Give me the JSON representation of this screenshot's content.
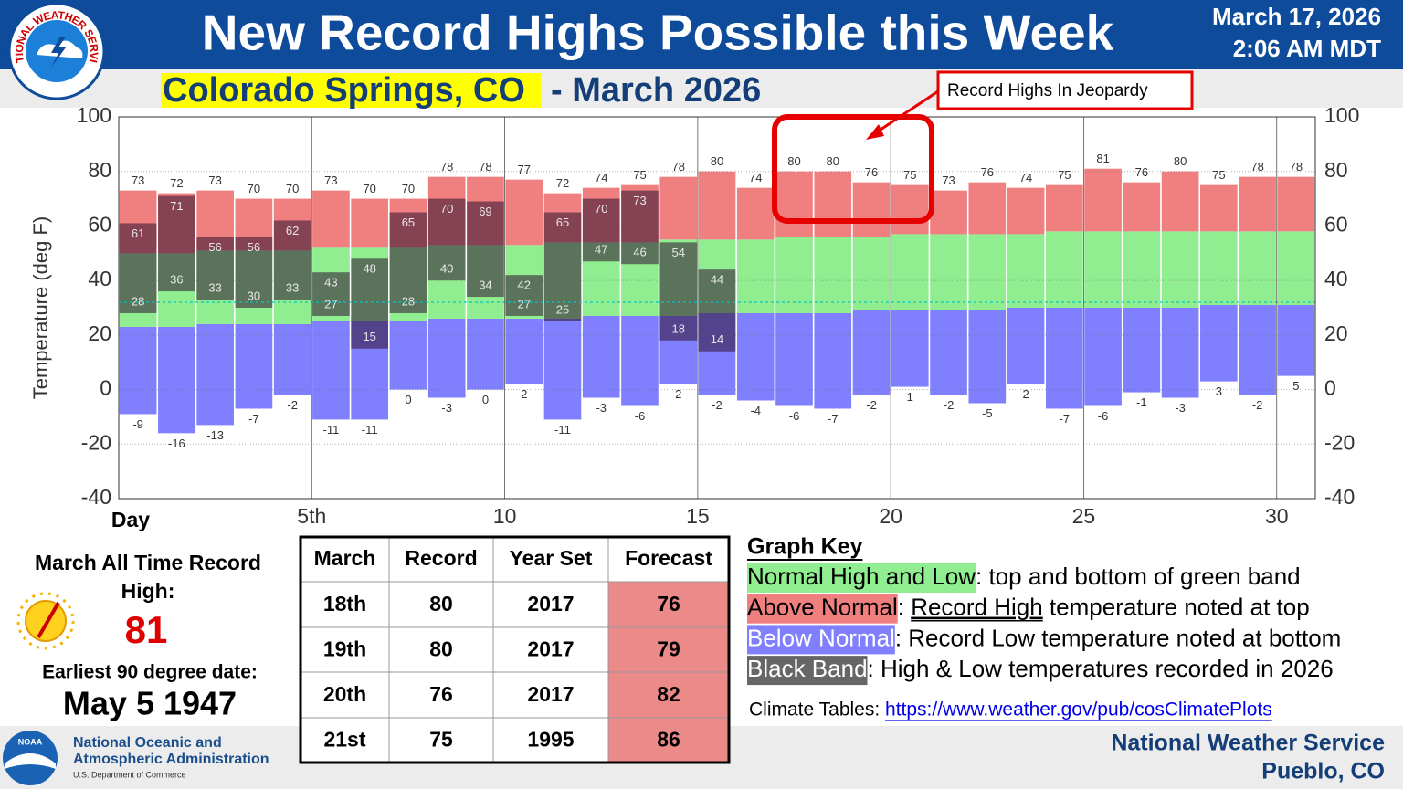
{
  "header": {
    "title": "New Record Highs Possible this Week",
    "date": "March 17, 2026",
    "time": "2:06 AM MDT",
    "logo_text": "NATIONAL WEATHER SERVICE",
    "location": "Colorado Springs, CO",
    "period": "- March 2026"
  },
  "chart_data": {
    "type": "range-bar",
    "annotation": "Record Highs In Jeopardy",
    "y_label": "Temperature (deg F)",
    "x_label": "Day",
    "x": [
      1,
      2,
      3,
      4,
      5,
      6,
      7,
      8,
      9,
      10,
      11,
      12,
      13,
      14,
      15,
      16,
      17,
      18,
      19,
      20,
      21,
      22,
      23,
      24,
      25,
      26,
      27,
      28,
      29,
      30,
      31
    ],
    "record_high": [
      73,
      72,
      73,
      70,
      70,
      73,
      70,
      70,
      78,
      78,
      77,
      72,
      74,
      75,
      78,
      80,
      74,
      80,
      80,
      76,
      75,
      73,
      76,
      74,
      75,
      81,
      76,
      80,
      75,
      78,
      78
    ],
    "record_low": [
      -9,
      -16,
      -13,
      -7,
      -2,
      -11,
      -11,
      0,
      -3,
      0,
      2,
      -11,
      -3,
      -6,
      2,
      -2,
      -4,
      -6,
      -7,
      -2,
      1,
      -2,
      -5,
      2,
      -7,
      -6,
      -1,
      -3,
      3,
      -2,
      5
    ],
    "normal_high": [
      50,
      50,
      51,
      51,
      51,
      52,
      52,
      52,
      53,
      53,
      53,
      54,
      54,
      54,
      55,
      55,
      55,
      56,
      56,
      56,
      57,
      57,
      57,
      57,
      58,
      58,
      58,
      58,
      58,
      58,
      58
    ],
    "normal_low": [
      23,
      23,
      24,
      24,
      24,
      25,
      25,
      25,
      26,
      26,
      26,
      26,
      27,
      27,
      27,
      28,
      28,
      28,
      28,
      29,
      29,
      29,
      29,
      30,
      30,
      30,
      30,
      30,
      31,
      31,
      31
    ],
    "high_2026": [
      61,
      71,
      56,
      56,
      62,
      43,
      48,
      65,
      70,
      69,
      42,
      65,
      70,
      73,
      54,
      44,
      null,
      null,
      null,
      null,
      null,
      null,
      null,
      null,
      null,
      null,
      null,
      null,
      null,
      null,
      null
    ],
    "low_2026": [
      28,
      36,
      33,
      30,
      33,
      27,
      15,
      28,
      40,
      34,
      27,
      25,
      47,
      46,
      18,
      14,
      null,
      null,
      null,
      null,
      null,
      null,
      null,
      null,
      null,
      null,
      null,
      null,
      null,
      null,
      null
    ],
    "colors": {
      "above_normal": "#f08080",
      "normal": "#90ee90",
      "below_normal": "#8080ff",
      "observed": "rgba(45,15,45,0.55)"
    },
    "freezing_line": 32,
    "xlim": [
      0,
      31
    ],
    "xticks": [
      {
        "value": 5,
        "label": "5th"
      },
      10,
      15,
      20,
      25,
      30
    ],
    "ylim": [
      -40,
      100
    ],
    "yticks": [
      -40,
      -20,
      0,
      20,
      40,
      60,
      80,
      100
    ],
    "grid": true
  },
  "record_panel": {
    "heading_lines": [
      "March All Time Record",
      "High:"
    ],
    "record": 81,
    "earliest_label": "Earliest 90 degree date:",
    "earliest_date": "May 5 1947"
  },
  "table": {
    "header": [
      "March",
      "Record",
      "Year Set",
      "Forecast"
    ],
    "rows": [
      [
        "18th",
        80,
        2017,
        76
      ],
      [
        "19th",
        80,
        2017,
        79
      ],
      [
        "20th",
        76,
        2017,
        82
      ],
      [
        "21st",
        75,
        1995,
        86
      ]
    ]
  },
  "graph_key": {
    "title": "Graph Key",
    "items": [
      {
        "term": "Normal High and Low",
        "color": "#90ee90",
        "term_color": "#000000",
        "text": ": top and bottom of green band"
      },
      {
        "term": "Above Normal",
        "color": "#f08080",
        "term_color": "#000000",
        "text": ": ",
        "underlined": "Record High",
        "after": " temperature noted at top"
      },
      {
        "term": "Below Normal",
        "color": "#8080ff",
        "term_color": "#ffffff",
        "text": ": Record Low temperature noted at bottom"
      },
      {
        "term": "Black Band",
        "color": "#666666",
        "term_color": "#ffffff",
        "text": ": High & Low temperatures recorded in 2026"
      }
    ],
    "link_label": "Climate Tables: ",
    "link": "https://www.weather.gov/pub/cosClimatePlots"
  },
  "footer": {
    "noaa_lines": [
      "National Oceanic and",
      "Atmospheric Administration"
    ],
    "noaa_dept": "U.S. Department of Commerce",
    "noaa_logo": "NOAA",
    "office": "National Weather Service",
    "location": "Pueblo, CO"
  }
}
